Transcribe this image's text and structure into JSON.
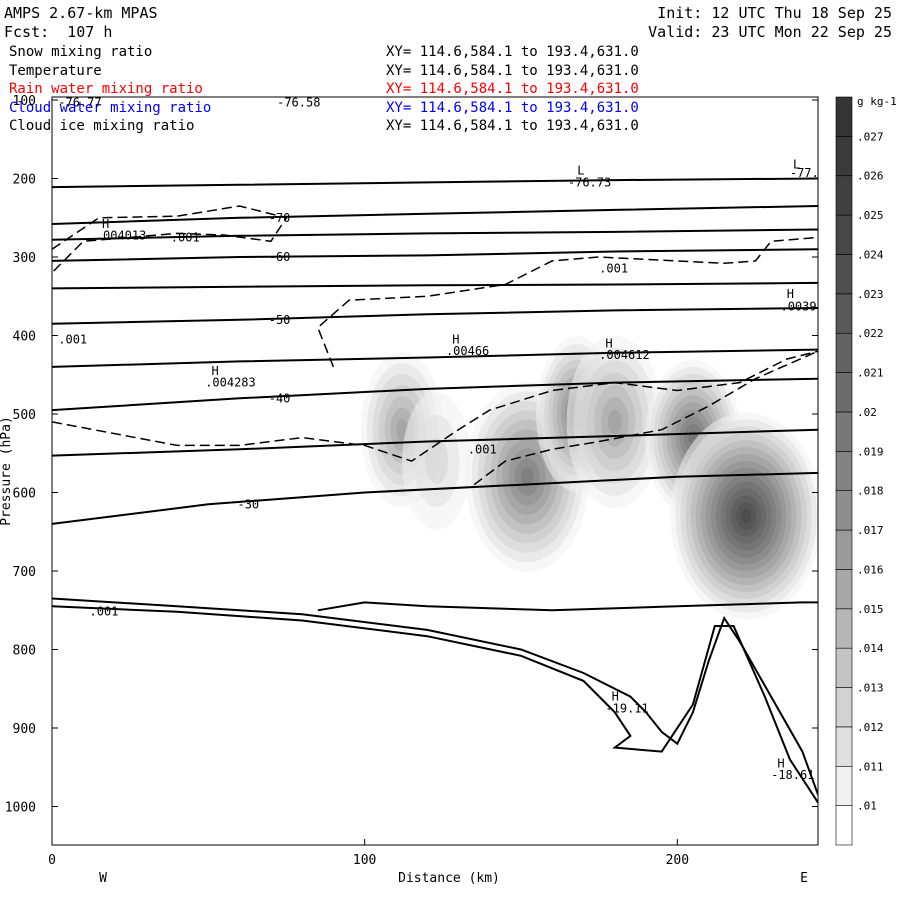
{
  "header": {
    "model": "AMPS 2.67-km MPAS",
    "forecast": "Fcst:  107 h",
    "init": "Init: 12 UTC Thu 18 Sep 25",
    "valid": "Valid: 23 UTC Mon 22 Sep 25"
  },
  "fields": [
    {
      "name": "Snow mixing ratio",
      "xy": "XY= 114.6,584.1 to 193.4,631.0",
      "color": "#000000"
    },
    {
      "name": "Temperature",
      "xy": "XY= 114.6,584.1 to 193.4,631.0",
      "color": "#000000"
    },
    {
      "name": "Rain water mixing ratio",
      "xy": "XY= 114.6,584.1 to 193.4,631.0",
      "color": "#ff0000"
    },
    {
      "name": "Cloud water mixing ratio",
      "xy": "XY= 114.6,584.1 to 193.4,631.0",
      "color": "#0000ff"
    },
    {
      "name": "Cloud ice mixing ratio",
      "xy": "XY= 114.6,584.1 to 193.4,631.0",
      "color": "#000000"
    }
  ],
  "chart_data": {
    "type": "heatmap",
    "xlabel": "Distance (km)",
    "ylabel": "Pressure (hPa)",
    "xlim": [
      0,
      245
    ],
    "ylim": [
      1050,
      100
    ],
    "x_ticks": [
      "0",
      "100",
      "200"
    ],
    "x_tick_values": [
      0,
      100,
      200
    ],
    "y_ticks": [
      "100",
      "200",
      "300",
      "400",
      "500",
      "600",
      "700",
      "800",
      "900",
      "1000"
    ],
    "y_tick_values": [
      100,
      200,
      300,
      400,
      500,
      600,
      700,
      800,
      900,
      1000
    ],
    "left_end_label": "W",
    "right_end_label": "E",
    "colorbar": {
      "units": "g kg-1",
      "levels": [
        ".01",
        ".011",
        ".012",
        ".013",
        ".014",
        ".015",
        ".016",
        ".017",
        ".018",
        ".019",
        ".02",
        ".021",
        ".022",
        ".023",
        ".024",
        ".025",
        ".026",
        ".027"
      ],
      "colors": [
        "#ffffff",
        "#f0f0f0",
        "#e0e0e0",
        "#d2d2d2",
        "#c4c4c4",
        "#b6b6b6",
        "#a8a8a8",
        "#9a9a9a",
        "#8e8e8e",
        "#828282",
        "#777777",
        "#6c6c6c",
        "#626262",
        "#585858",
        "#4f4f4f",
        "#474747",
        "#404040",
        "#3a3a3a",
        "#353535"
      ]
    },
    "shaded_blobs": [
      {
        "x": 112,
        "p": 520,
        "sx": 6,
        "sp": 45,
        "max": 0.016
      },
      {
        "x": 123,
        "p": 560,
        "sx": 5,
        "sp": 40,
        "max": 0.012
      },
      {
        "x": 152,
        "p": 580,
        "sx": 9,
        "sp": 55,
        "max": 0.019
      },
      {
        "x": 168,
        "p": 500,
        "sx": 6,
        "sp": 45,
        "max": 0.019
      },
      {
        "x": 180,
        "p": 510,
        "sx": 7,
        "sp": 50,
        "max": 0.016
      },
      {
        "x": 205,
        "p": 530,
        "sx": 7,
        "sp": 45,
        "max": 0.02
      },
      {
        "x": 222,
        "p": 630,
        "sx": 11,
        "sp": 60,
        "max": 0.024
      }
    ],
    "isotherms": [
      {
        "label": "-70",
        "points": [
          [
            0,
            258
          ],
          [
            60,
            250
          ],
          [
            120,
            245
          ],
          [
            180,
            240
          ],
          [
            245,
            235
          ]
        ]
      },
      {
        "label": "-60",
        "points": [
          [
            0,
            305
          ],
          [
            60,
            300
          ],
          [
            120,
            298
          ],
          [
            180,
            293
          ],
          [
            245,
            290
          ]
        ]
      },
      {
        "label": "-50",
        "points": [
          [
            0,
            385
          ],
          [
            60,
            380
          ],
          [
            120,
            373
          ],
          [
            180,
            368
          ],
          [
            245,
            365
          ]
        ]
      },
      {
        "label": "-40",
        "points": [
          [
            0,
            495
          ],
          [
            60,
            480
          ],
          [
            120,
            468
          ],
          [
            180,
            460
          ],
          [
            245,
            455
          ]
        ]
      },
      {
        "label": "-30",
        "points": [
          [
            0,
            640
          ],
          [
            50,
            615
          ],
          [
            100,
            600
          ],
          [
            150,
            590
          ],
          [
            200,
            580
          ],
          [
            245,
            575
          ]
        ]
      }
    ],
    "upper_contours": [
      {
        "label": "",
        "points": [
          [
            0,
            211
          ],
          [
            60,
            208
          ],
          [
            120,
            205
          ],
          [
            180,
            202
          ],
          [
            245,
            200
          ]
        ]
      },
      {
        "label": "",
        "points": [
          [
            0,
            278
          ],
          [
            60,
            273
          ],
          [
            120,
            270
          ],
          [
            180,
            268
          ],
          [
            245,
            265
          ]
        ]
      },
      {
        "label": "",
        "points": [
          [
            0,
            340
          ],
          [
            60,
            338
          ],
          [
            120,
            336
          ],
          [
            180,
            335
          ],
          [
            245,
            333
          ]
        ]
      },
      {
        "label": "",
        "points": [
          [
            0,
            440
          ],
          [
            60,
            433
          ],
          [
            120,
            428
          ],
          [
            180,
            422
          ],
          [
            245,
            418
          ]
        ]
      },
      {
        "label": "",
        "points": [
          [
            0,
            553
          ],
          [
            60,
            545
          ],
          [
            120,
            535
          ],
          [
            180,
            528
          ],
          [
            245,
            520
          ]
        ]
      }
    ],
    "dashed_contours": [
      {
        "label": ".001",
        "points": [
          [
            0,
            290
          ],
          [
            15,
            250
          ],
          [
            40,
            248
          ],
          [
            60,
            235
          ],
          [
            75,
            250
          ],
          [
            70,
            280
          ],
          [
            55,
            272
          ],
          [
            40,
            270
          ],
          [
            10,
            280
          ],
          [
            0,
            320
          ]
        ]
      },
      {
        "label": ".001",
        "points": [
          [
            0,
            510
          ],
          [
            20,
            525
          ],
          [
            40,
            540
          ],
          [
            60,
            540
          ],
          [
            80,
            530
          ],
          [
            100,
            540
          ],
          [
            115,
            560
          ],
          [
            130,
            520
          ],
          [
            140,
            495
          ],
          [
            160,
            470
          ],
          [
            180,
            460
          ],
          [
            200,
            470
          ],
          [
            220,
            460
          ],
          [
            235,
            430
          ],
          [
            245,
            420
          ]
        ]
      },
      {
        "label": ".001",
        "points": [
          [
            90,
            440
          ],
          [
            85,
            390
          ],
          [
            95,
            355
          ],
          [
            120,
            350
          ],
          [
            145,
            335
          ],
          [
            160,
            305
          ],
          [
            175,
            300
          ],
          [
            200,
            305
          ],
          [
            215,
            308
          ],
          [
            225,
            305
          ],
          [
            230,
            280
          ],
          [
            245,
            275
          ]
        ]
      },
      {
        "label": "",
        "points": [
          [
            135,
            590
          ],
          [
            145,
            560
          ],
          [
            160,
            545
          ],
          [
            175,
            535
          ],
          [
            195,
            520
          ],
          [
            210,
            490
          ],
          [
            225,
            455
          ],
          [
            245,
            420
          ]
        ]
      }
    ],
    "terrain_lines": [
      {
        "points": [
          [
            0,
            735
          ],
          [
            40,
            745
          ],
          [
            80,
            755
          ],
          [
            120,
            775
          ],
          [
            150,
            800
          ],
          [
            170,
            830
          ],
          [
            185,
            860
          ],
          [
            190,
            880
          ],
          [
            195,
            905
          ],
          [
            200,
            920
          ],
          [
            205,
            880
          ],
          [
            210,
            815
          ],
          [
            215,
            760
          ],
          [
            220,
            790
          ],
          [
            230,
            860
          ],
          [
            240,
            930
          ],
          [
            245,
            985
          ]
        ]
      },
      {
        "points": [
          [
            0,
            745
          ],
          [
            40,
            752
          ],
          [
            80,
            763
          ],
          [
            120,
            783
          ],
          [
            150,
            808
          ],
          [
            170,
            840
          ],
          [
            180,
            880
          ],
          [
            185,
            910
          ],
          [
            180,
            925
          ],
          [
            195,
            930
          ],
          [
            205,
            870
          ],
          [
            212,
            770
          ],
          [
            218,
            770
          ],
          [
            228,
            860
          ],
          [
            236,
            940
          ],
          [
            245,
            995
          ]
        ]
      },
      {
        "points": [
          [
            85,
            750
          ],
          [
            100,
            740
          ],
          [
            120,
            745
          ],
          [
            160,
            750
          ],
          [
            200,
            745
          ],
          [
            240,
            740
          ],
          [
            245,
            740
          ]
        ]
      }
    ],
    "annotations": [
      {
        "text": "-76.58",
        "x": 72,
        "p": 108
      },
      {
        "text": "-76.77",
        "x": 2,
        "p": 108
      },
      {
        "text": "L",
        "x": 168,
        "p": 195
      },
      {
        "text": "-76.73",
        "x": 165,
        "p": 210
      },
      {
        "text": "L",
        "x": 237,
        "p": 187
      },
      {
        "text": "-77.",
        "x": 236,
        "p": 198
      },
      {
        "text": "H",
        "x": 16,
        "p": 263
      },
      {
        "text": ".004013",
        "x": 14,
        "p": 278
      },
      {
        "text": ".001",
        "x": 38,
        "p": 280
      },
      {
        "text": ".001",
        "x": 175,
        "p": 320
      },
      {
        "text": "H",
        "x": 235,
        "p": 352
      },
      {
        "text": ".0039",
        "x": 233,
        "p": 368
      },
      {
        "text": "H",
        "x": 128,
        "p": 410
      },
      {
        "text": ".00466",
        "x": 126,
        "p": 425
      },
      {
        "text": "H",
        "x": 177,
        "p": 415
      },
      {
        "text": ".004612",
        "x": 175,
        "p": 430
      },
      {
        "text": "H",
        "x": 51,
        "p": 450
      },
      {
        "text": ".004283",
        "x": 49,
        "p": 465
      },
      {
        "text": ".001",
        "x": 2,
        "p": 410
      },
      {
        "text": ".001",
        "x": 133,
        "p": 550
      },
      {
        "text": ".001",
        "x": 12,
        "p": 757
      },
      {
        "text": "H",
        "x": 179,
        "p": 865
      },
      {
        "text": "-19.11",
        "x": 177,
        "p": 880
      },
      {
        "text": "H",
        "x": 232,
        "p": 950
      },
      {
        "text": "-18.61",
        "x": 230,
        "p": 965
      }
    ]
  }
}
